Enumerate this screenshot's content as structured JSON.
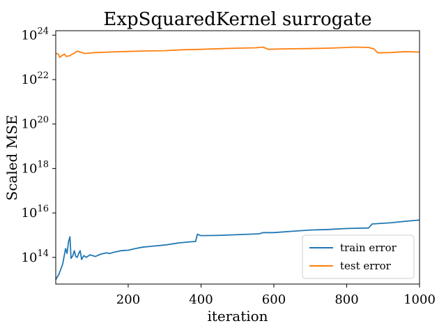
{
  "chart_data": {
    "type": "line",
    "title": "ExpSquaredKernel surrogate",
    "xlabel": "iteration",
    "ylabel": "Scaled MSE",
    "xlim": [
      1,
      1000
    ],
    "ylim_log10": [
      12.8,
      24.2
    ],
    "yscale": "log",
    "x_ticks": [
      200,
      400,
      600,
      800,
      1000
    ],
    "x_tick_labels": [
      "200",
      "400",
      "600",
      "800",
      "1000"
    ],
    "y_ticks_log10": [
      14,
      16,
      18,
      20,
      22,
      24
    ],
    "y_tick_base": "10",
    "y_tick_exponents": [
      "14",
      "16",
      "18",
      "20",
      "22",
      "24"
    ],
    "legend_position": "lower-right",
    "grid": false,
    "series": [
      {
        "name": "train error",
        "color": "#1f77b4",
        "points": [
          [
            1,
            10000000000000.0
          ],
          [
            10,
            18000000000000.0
          ],
          [
            20,
            50000000000000.0
          ],
          [
            28,
            250000000000000.0
          ],
          [
            32,
            150000000000000.0
          ],
          [
            36,
            500000000000000.0
          ],
          [
            40,
            850000000000000.0
          ],
          [
            43,
            90000000000000.0
          ],
          [
            48,
            120000000000000.0
          ],
          [
            52,
            200000000000000.0
          ],
          [
            56,
            110000000000000.0
          ],
          [
            60,
            100000000000000.0
          ],
          [
            64,
            150000000000000.0
          ],
          [
            68,
            200000000000000.0
          ],
          [
            72,
            80000000000000.0
          ],
          [
            78,
            120000000000000.0
          ],
          [
            85,
            100000000000000.0
          ],
          [
            95,
            130000000000000.0
          ],
          [
            110,
            110000000000000.0
          ],
          [
            125,
            140000000000000.0
          ],
          [
            140,
            160000000000000.0
          ],
          [
            150,
            150000000000000.0
          ],
          [
            160,
            170000000000000.0
          ],
          [
            180,
            200000000000000.0
          ],
          [
            200,
            210000000000000.0
          ],
          [
            220,
            250000000000000.0
          ],
          [
            240,
            290000000000000.0
          ],
          [
            260,
            310000000000000.0
          ],
          [
            300,
            360000000000000.0
          ],
          [
            340,
            450000000000000.0
          ],
          [
            370,
            500000000000000.0
          ],
          [
            385,
            520000000000000.0
          ],
          [
            390,
            1100000000000000.0
          ],
          [
            400,
            950000000000000.0
          ],
          [
            450,
            980000000000000.0
          ],
          [
            500,
            1050000000000000.0
          ],
          [
            560,
            1150000000000000.0
          ],
          [
            570,
            1300000000000000.0
          ],
          [
            600,
            1300000000000000.0
          ],
          [
            650,
            1500000000000000.0
          ],
          [
            700,
            1700000000000000.0
          ],
          [
            750,
            1800000000000000.0
          ],
          [
            800,
            2000000000000000.0
          ],
          [
            860,
            2100000000000000.0
          ],
          [
            870,
            3200000000000000.0
          ],
          [
            920,
            3600000000000000.0
          ],
          [
            960,
            4200000000000000.0
          ],
          [
            1000,
            4800000000000000.0
          ]
        ]
      },
      {
        "name": "test error",
        "color": "#ff7f0e",
        "points": [
          [
            1,
            1.5e+23
          ],
          [
            8,
            1.4e+23
          ],
          [
            12,
            1e+23
          ],
          [
            18,
            1.2e+23
          ],
          [
            25,
            1.4e+23
          ],
          [
            30,
            1.1e+23
          ],
          [
            40,
            1.2e+23
          ],
          [
            50,
            1.5e+23
          ],
          [
            60,
            1.9e+23
          ],
          [
            70,
            1.7e+23
          ],
          [
            80,
            1.5e+23
          ],
          [
            100,
            1.6e+23
          ],
          [
            150,
            1.75e+23
          ],
          [
            200,
            1.85e+23
          ],
          [
            250,
            1.95e+23
          ],
          [
            300,
            2e+23
          ],
          [
            350,
            2.2e+23
          ],
          [
            400,
            2.3e+23
          ],
          [
            450,
            2.45e+23
          ],
          [
            500,
            2.6e+23
          ],
          [
            550,
            2.7e+23
          ],
          [
            570,
            2.9e+23
          ],
          [
            585,
            2.3e+23
          ],
          [
            620,
            2.4e+23
          ],
          [
            700,
            2.5e+23
          ],
          [
            750,
            2.6e+23
          ],
          [
            790,
            2.75e+23
          ],
          [
            820,
            2.9e+23
          ],
          [
            860,
            2.8e+23
          ],
          [
            875,
            2.4e+23
          ],
          [
            885,
            1.6e+23
          ],
          [
            920,
            1.65e+23
          ],
          [
            960,
            1.8e+23
          ],
          [
            1000,
            1.75e+23
          ]
        ]
      }
    ]
  }
}
